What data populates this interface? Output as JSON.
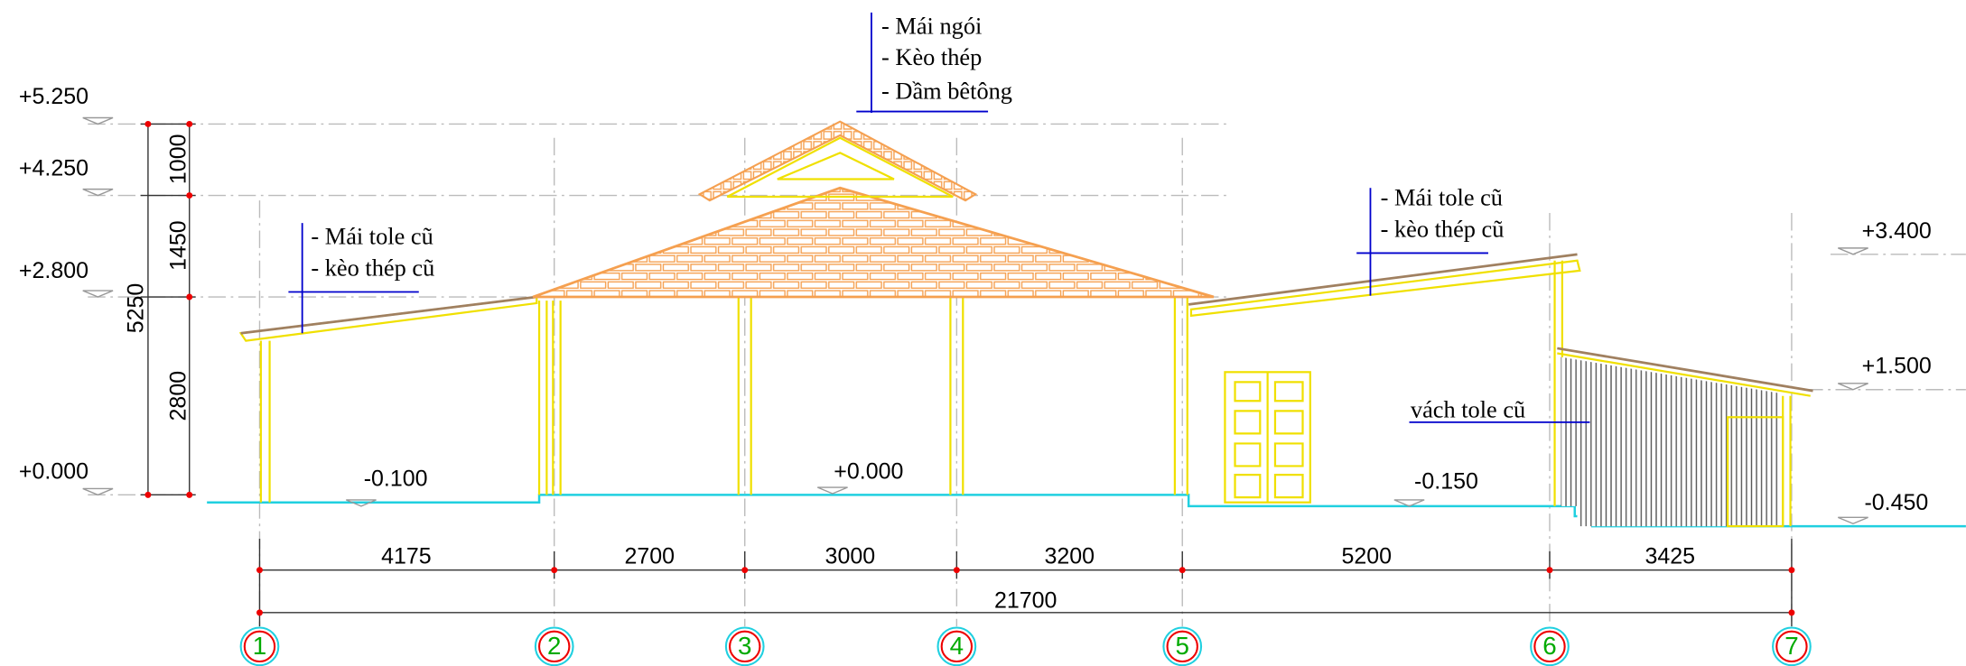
{
  "levels_left": [
    "+5.250",
    "+4.250",
    "+2.800",
    "+0.000"
  ],
  "levels_right": [
    "+3.400",
    "+1.500",
    "-0.450"
  ],
  "floor_levels": [
    "-0.100",
    "+0.000",
    "-0.150"
  ],
  "vertical_dimensions": [
    "1000",
    "1450",
    "2800",
    "5250"
  ],
  "horizontal_dimensions": [
    "4175",
    "2700",
    "3000",
    "3200",
    "5200",
    "3425"
  ],
  "overall_dimension": "21700",
  "axes": [
    "1",
    "2",
    "3",
    "4",
    "5",
    "6",
    "7"
  ],
  "notes": {
    "main_roof": [
      "- Mái ngói",
      "- Kèo thép",
      "- Dầm bêtông"
    ],
    "left_roof": [
      "- Mái tole cũ",
      "- kèo thép cũ"
    ],
    "right_roof": [
      "- Mái tole cũ",
      "- kèo thép cũ"
    ],
    "wall": "vách tole cũ"
  }
}
